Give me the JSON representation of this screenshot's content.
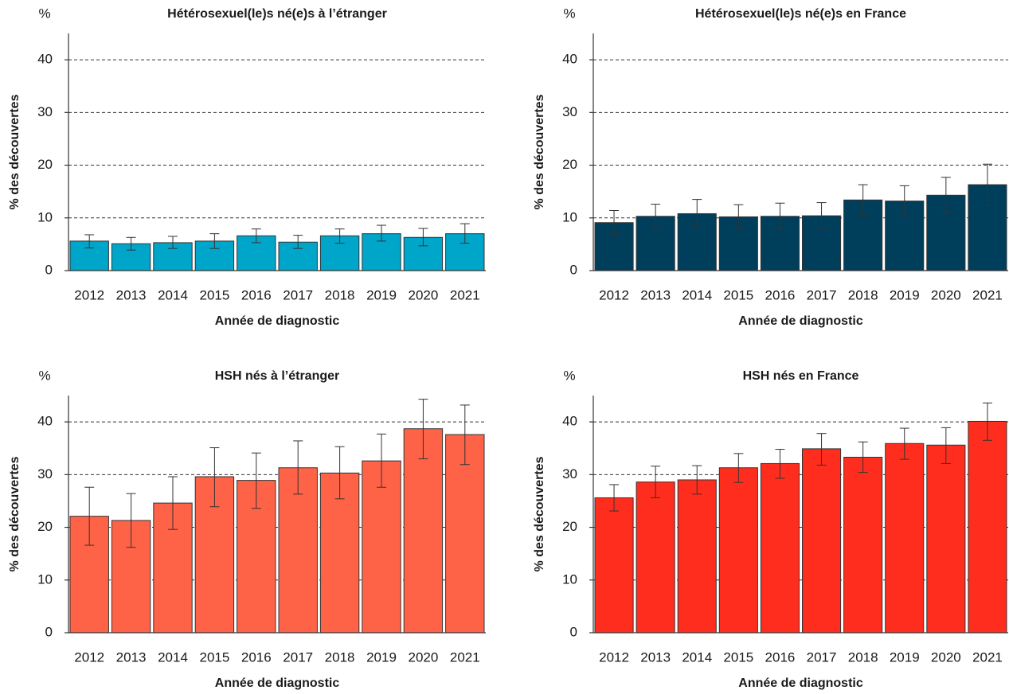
{
  "chart_data": [
    {
      "type": "bar",
      "title": "Hétérosexuel(le)s né(e)s à l’étranger",
      "unit_label": "%",
      "y_label": "% des découvertes",
      "x_label": "Année de diagnostic",
      "categories": [
        "2012",
        "2013",
        "2014",
        "2015",
        "2016",
        "2017",
        "2018",
        "2019",
        "2020",
        "2021"
      ],
      "series": [
        {
          "name": "Hétérosexuel(le)s né(e)s à l’étranger",
          "color": "#00a6c9",
          "values": [
            5.6,
            5.1,
            5.3,
            5.6,
            6.6,
            5.4,
            6.6,
            7.0,
            6.3,
            7.0
          ],
          "error_low": [
            4.3,
            3.9,
            4.2,
            4.2,
            5.3,
            4.2,
            5.2,
            5.6,
            4.7,
            5.2
          ],
          "error_high": [
            6.8,
            6.3,
            6.5,
            7.0,
            7.9,
            6.7,
            7.9,
            8.6,
            8.0,
            8.9
          ]
        }
      ],
      "ylim": [
        0,
        45
      ],
      "yticks": [
        0,
        10,
        20,
        30,
        40
      ],
      "grid": true
    },
    {
      "type": "bar",
      "title": "Hétérosexuel(le)s né(e)s en France",
      "unit_label": "%",
      "y_label": "% des découvertes",
      "x_label": "Année de diagnostic",
      "categories": [
        "2012",
        "2013",
        "2014",
        "2015",
        "2016",
        "2017",
        "2018",
        "2019",
        "2020",
        "2021"
      ],
      "series": [
        {
          "name": "Hétérosexuel(le)s né(e)s en France",
          "color": "#003f5c",
          "values": [
            9.1,
            10.3,
            10.8,
            10.2,
            10.3,
            10.4,
            13.4,
            13.2,
            14.3,
            16.3
          ],
          "error_low": [
            6.9,
            8.0,
            8.3,
            7.9,
            8.0,
            8.0,
            10.6,
            10.4,
            11.0,
            12.3
          ],
          "error_high": [
            11.4,
            12.6,
            13.5,
            12.5,
            12.8,
            12.9,
            16.3,
            16.1,
            17.7,
            20.2
          ]
        }
      ],
      "ylim": [
        0,
        45
      ],
      "yticks": [
        0,
        10,
        20,
        30,
        40
      ],
      "grid": true
    },
    {
      "type": "bar",
      "title": "HSH nés à l’étranger",
      "unit_label": "%",
      "y_label": "% des découvertes",
      "x_label": "Année de diagnostic",
      "categories": [
        "2012",
        "2013",
        "2014",
        "2015",
        "2016",
        "2017",
        "2018",
        "2019",
        "2020",
        "2021"
      ],
      "series": [
        {
          "name": "HSH nés à l’étranger",
          "color": "#ff6347",
          "values": [
            22.1,
            21.3,
            24.6,
            29.6,
            28.9,
            31.3,
            30.3,
            32.6,
            38.7,
            37.6
          ],
          "error_low": [
            16.6,
            16.2,
            19.6,
            23.9,
            23.6,
            26.3,
            25.4,
            27.6,
            33.0,
            31.9
          ],
          "error_high": [
            27.6,
            26.4,
            29.6,
            35.1,
            34.1,
            36.4,
            35.3,
            37.7,
            44.3,
            43.2
          ]
        }
      ],
      "ylim": [
        0,
        45
      ],
      "yticks": [
        0,
        10,
        20,
        30,
        40
      ],
      "grid": true
    },
    {
      "type": "bar",
      "title": "HSH nés en France",
      "unit_label": "%",
      "y_label": "% des découvertes",
      "x_label": "Année de diagnostic",
      "categories": [
        "2012",
        "2013",
        "2014",
        "2015",
        "2016",
        "2017",
        "2018",
        "2019",
        "2020",
        "2021"
      ],
      "series": [
        {
          "name": "HSH nés en France",
          "color": "#ff2d1e",
          "values": [
            25.6,
            28.6,
            29.0,
            31.3,
            32.1,
            34.9,
            33.3,
            35.9,
            35.6,
            40.1
          ],
          "error_low": [
            23.1,
            25.6,
            26.3,
            28.5,
            29.3,
            31.8,
            30.4,
            32.9,
            32.1,
            36.5
          ],
          "error_high": [
            28.1,
            31.6,
            31.7,
            34.0,
            34.8,
            37.8,
            36.2,
            38.8,
            38.9,
            43.6
          ]
        }
      ],
      "ylim": [
        0,
        45
      ],
      "yticks": [
        0,
        10,
        20,
        30,
        40
      ],
      "grid": true
    }
  ]
}
